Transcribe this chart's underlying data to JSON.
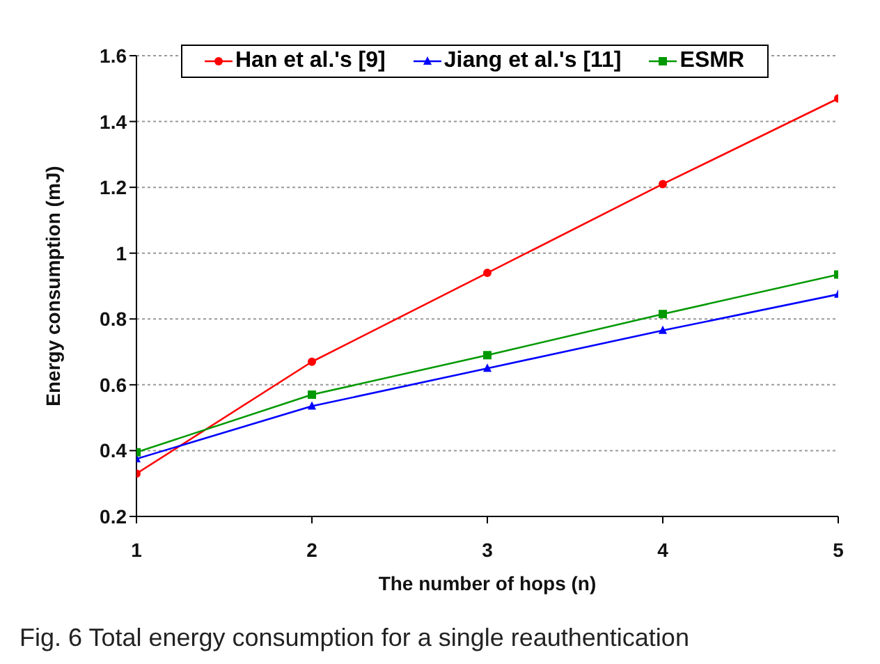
{
  "chart_data": {
    "type": "line",
    "xlabel": "The number of hops (n)",
    "ylabel": "Energy consumption (mJ)",
    "x": [
      1,
      2,
      3,
      4,
      5
    ],
    "series": [
      {
        "name": "Han et al.'s [9]",
        "color": "#ff0000",
        "marker": "circle",
        "values": [
          0.33,
          0.67,
          0.94,
          1.21,
          1.47
        ]
      },
      {
        "name": "Jiang et al.'s [11]",
        "color": "#0000ff",
        "marker": "triangle",
        "values": [
          0.375,
          0.535,
          0.65,
          0.765,
          0.875
        ]
      },
      {
        "name": "ESMR",
        "color": "#009900",
        "marker": "square",
        "values": [
          0.395,
          0.57,
          0.69,
          0.815,
          0.935
        ]
      }
    ],
    "xlim": [
      1,
      5
    ],
    "xticks": [
      1,
      2,
      3,
      4,
      5
    ],
    "ylim": [
      0.2,
      1.6
    ],
    "yticks": [
      0.2,
      0.4,
      0.6,
      0.8,
      1,
      1.2,
      1.4,
      1.6
    ],
    "grid": "y",
    "legend": "top",
    "line_style": "solid",
    "annotations": [
      "Fig. 6 Total energy consumption for a single reauthentication"
    ]
  }
}
